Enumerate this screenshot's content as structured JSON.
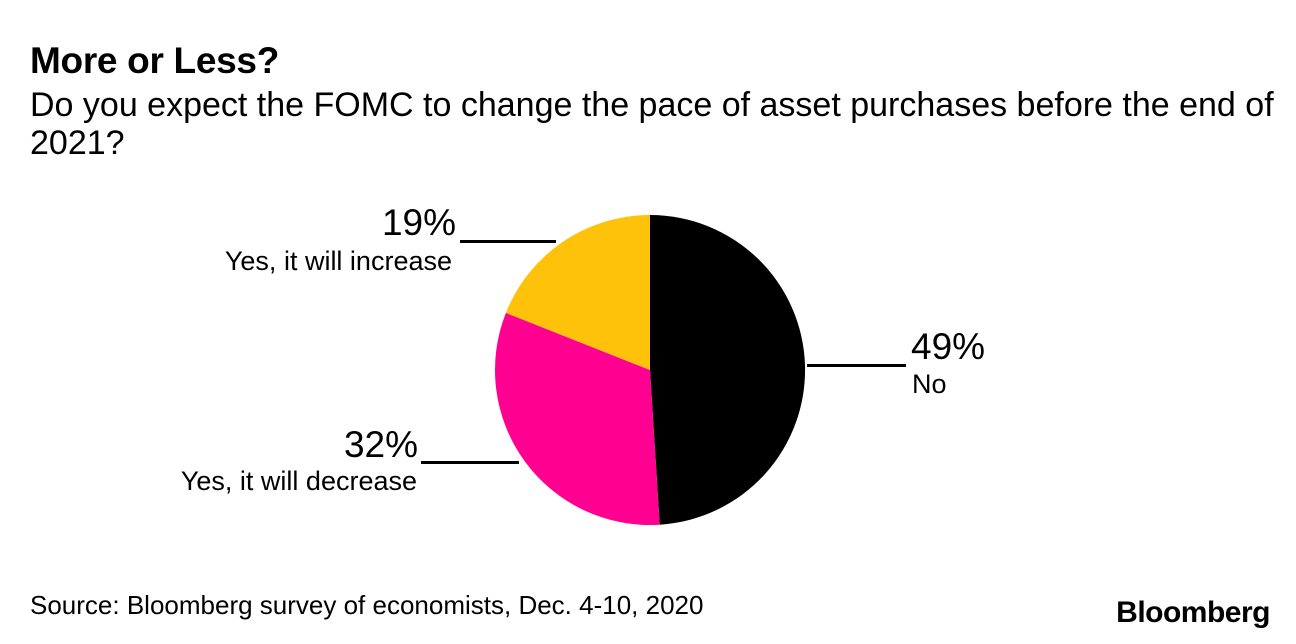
{
  "header": {
    "title": "More or Less?",
    "subtitle": "Do you expect the FOMC to change the pace of asset purchases before the end of 2021?"
  },
  "chart_data": {
    "type": "pie",
    "title": "More or Less?",
    "subtitle": "Do you expect the FOMC to change the pace of asset purchases before the end of 2021?",
    "unit": "%",
    "start_angle_deg": 0,
    "direction": "clockwise",
    "legend": "none (direct callout labels with leader lines)",
    "segments": [
      {
        "label": "No",
        "value": 49,
        "display": "49%",
        "color": "#000000"
      },
      {
        "label": "Yes, it will decrease",
        "value": 32,
        "display": "32%",
        "color": "#FF0090"
      },
      {
        "label": "Yes, it will increase",
        "value": 19,
        "display": "19%",
        "color": "#FFC20A"
      }
    ]
  },
  "footer": {
    "source": "Source: Bloomberg survey of economists, Dec. 4-10, 2020",
    "logo": "Bloomberg"
  }
}
